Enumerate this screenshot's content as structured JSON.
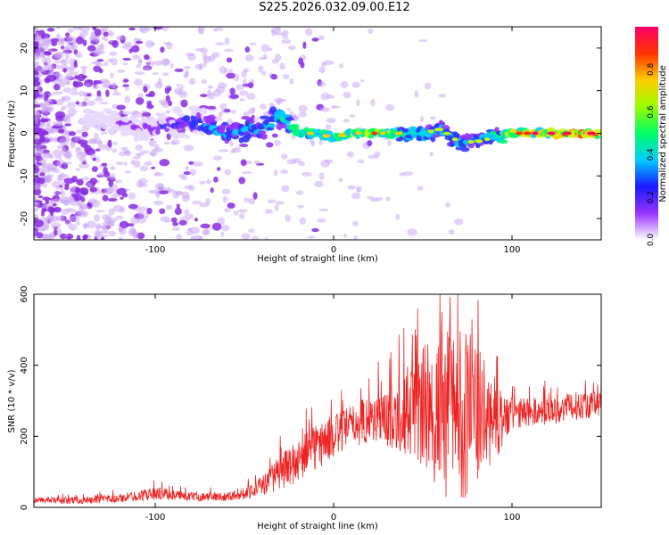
{
  "title": "S225.2026.032.09.00.E12",
  "colors": {
    "snr_line": "#ee2222",
    "colormap": [
      "#ffffff",
      "#9933ff",
      "#3333ff",
      "#00ccff",
      "#00ff66",
      "#ccff00",
      "#ffcc00",
      "#ff3300",
      "#ff0066"
    ]
  },
  "chart_data": [
    {
      "type": "heatmap",
      "xlabel": "Height of straight line (km)",
      "ylabel": "Frequency (Hz)",
      "xlim": [
        -168,
        150
      ],
      "ylim": [
        -25,
        25
      ],
      "xticks": [
        -100,
        0,
        100
      ],
      "yticks": [
        -20,
        -10,
        0,
        10,
        20
      ],
      "xtick_labels": [
        "-100",
        "0",
        "100"
      ],
      "ytick_labels": [
        "-20",
        "-10",
        "0",
        "10",
        "20"
      ],
      "colorbar": {
        "label": "Normalized spectral amplitude",
        "range": [
          0,
          1
        ],
        "ticks": [
          "0.0",
          "0.2",
          "0.4",
          "0.6",
          "0.8"
        ]
      },
      "ridge": {
        "x": [
          -168,
          -130,
          -100,
          -80,
          -60,
          -40,
          -30,
          -20,
          -10,
          0,
          10,
          20,
          30,
          40,
          50,
          60,
          70,
          80,
          90,
          100,
          110,
          120,
          130,
          140,
          150
        ],
        "freq": [
          6,
          3,
          1,
          3,
          0,
          1,
          4,
          0,
          0,
          -1,
          0,
          0,
          0,
          0,
          0,
          1,
          -2,
          -2,
          -1,
          0,
          0,
          0,
          0,
          0,
          0
        ],
        "amplitude": [
          0.05,
          0.1,
          0.2,
          0.3,
          0.35,
          0.4,
          0.45,
          0.55,
          0.55,
          0.55,
          0.6,
          0.65,
          0.6,
          0.5,
          0.45,
          0.4,
          0.35,
          0.35,
          0.5,
          0.7,
          0.75,
          0.8,
          0.85,
          0.95,
          0.9
        ]
      }
    },
    {
      "type": "line",
      "xlabel": "Height of straight line (km)",
      "ylabel": "SNR (10 * v/v)",
      "xlim": [
        -168,
        150
      ],
      "ylim": [
        0,
        600
      ],
      "xticks": [
        -100,
        0,
        100
      ],
      "yticks": [
        0,
        200,
        400,
        600
      ],
      "xtick_labels": [
        "-100",
        "0",
        "100"
      ],
      "ytick_labels": [
        "0",
        "200",
        "400",
        "600"
      ],
      "series": [
        {
          "name": "SNR",
          "x": [
            -168,
            -140,
            -120,
            -100,
            -90,
            -80,
            -60,
            -50,
            -40,
            -30,
            -20,
            -10,
            0,
            10,
            20,
            30,
            40,
            50,
            60,
            65,
            70,
            75,
            80,
            85,
            90,
            95,
            100,
            110,
            120,
            130,
            140,
            150
          ],
          "mean": [
            20,
            20,
            25,
            40,
            35,
            30,
            30,
            40,
            60,
            100,
            130,
            170,
            200,
            230,
            250,
            250,
            270,
            280,
            260,
            270,
            270,
            270,
            260,
            250,
            250,
            250,
            260,
            270,
            270,
            280,
            290,
            290
          ],
          "spread": [
            8,
            10,
            12,
            18,
            15,
            12,
            12,
            18,
            30,
            50,
            60,
            70,
            60,
            60,
            70,
            80,
            120,
            180,
            230,
            250,
            260,
            240,
            200,
            160,
            120,
            80,
            50,
            40,
            40,
            40,
            40,
            40
          ]
        }
      ]
    }
  ]
}
